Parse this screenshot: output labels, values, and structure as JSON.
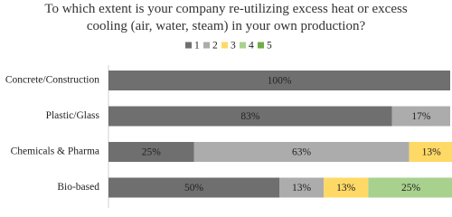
{
  "chart_data": {
    "type": "stacked-bar-horizontal",
    "title": "To which extent is your company re-utilizing excess heat or excess cooling (air, water, steam) in your own production?",
    "categories": [
      "Concrete/Construction",
      "Plastic/Glass",
      "Chemicals & Pharma",
      "Bio-based"
    ],
    "series": [
      {
        "name": "1",
        "color": "#6f6f6f",
        "values": [
          100,
          83,
          25,
          50
        ],
        "value_labels": [
          "100%",
          "83%",
          "25%",
          "50%"
        ]
      },
      {
        "name": "2",
        "color": "#acacac",
        "values": [
          0,
          17,
          63,
          13
        ],
        "value_labels": [
          null,
          "17%",
          "63%",
          "13%"
        ]
      },
      {
        "name": "3",
        "color": "#ffd966",
        "values": [
          0,
          0,
          13,
          13
        ],
        "value_labels": [
          null,
          null,
          "13%",
          "13%"
        ]
      },
      {
        "name": "4",
        "color": "#a9d18e",
        "values": [
          0,
          0,
          0,
          25
        ],
        "value_labels": [
          null,
          null,
          null,
          "25%"
        ]
      },
      {
        "name": "5",
        "color": "#70ad47",
        "values": [
          0,
          0,
          0,
          0
        ],
        "value_labels": [
          null,
          null,
          null,
          null
        ]
      }
    ],
    "xlim": [
      0,
      100
    ]
  }
}
